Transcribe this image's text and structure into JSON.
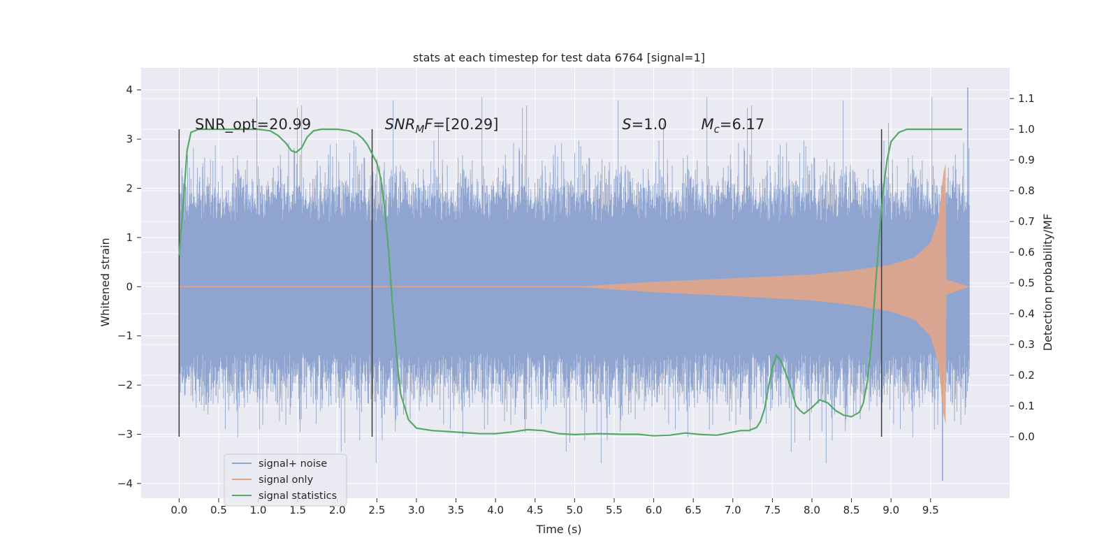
{
  "chart_data": {
    "type": "line",
    "title": "stats at each timestep for test data 6764 [signal=1]",
    "xlabel": "Time (s)",
    "ylabel": "Whitened strain",
    "ylabel_right": "Detection probability/MF",
    "xlim": [
      -0.48,
      10.5
    ],
    "ylim": [
      -4.3,
      4.45
    ],
    "ylim_right": [
      -0.2,
      1.2
    ],
    "x_ticks": [
      "0.0",
      "0.5",
      "1.0",
      "1.5",
      "2.0",
      "2.5",
      "3.0",
      "3.5",
      "4.0",
      "4.5",
      "5.0",
      "5.5",
      "6.0",
      "6.5",
      "7.0",
      "7.5",
      "8.0",
      "8.5",
      "9.0",
      "9.5"
    ],
    "y_ticks": [
      "4",
      "3",
      "2",
      "1",
      "0",
      "−1",
      "−2",
      "−3",
      "−4"
    ],
    "y_ticks_right": [
      "1.1",
      "1.0",
      "0.9",
      "0.8",
      "0.7",
      "0.6",
      "0.5",
      "0.4",
      "0.3",
      "0.2",
      "0.1",
      "0.0"
    ],
    "grid": true,
    "legend_position": "lower-left",
    "colors": {
      "background": "#eaeaf2",
      "grid": "#ffffff",
      "noise": "#8fa5cf",
      "signal": "#e0a58a",
      "stats": "#55a868",
      "vline": "#3a3a3a"
    },
    "annotations": [
      {
        "prefix": "SNR_opt=20.99",
        "sub": "",
        "suffix": "",
        "x": 0.2,
        "y": 3.2
      },
      {
        "prefix": "SNR",
        "sub": "M",
        "suffix": "F=[20.29]",
        "x": 2.6,
        "y": 3.2
      },
      {
        "prefix": "S",
        "sub": "",
        "suffix": "=1.0",
        "x": 5.6,
        "y": 3.2
      },
      {
        "prefix": "M",
        "sub": "c",
        "suffix": "=6.17",
        "x": 6.6,
        "y": 3.2
      }
    ],
    "vertical_lines": [
      0.0,
      2.44,
      8.88
    ],
    "series": [
      {
        "name": "signal+ noise",
        "axis": "left",
        "x_range": [
          0.0,
          9.99
        ],
        "description_values": {
          "typical_band": [
            -1.3,
            1.3
          ],
          "peak_max": 4.05,
          "peak_min": -3.95
        }
      },
      {
        "name": "signal only",
        "axis": "left",
        "x_range": [
          0.0,
          9.99
        ],
        "envelope": {
          "x": [
            0.0,
            5.0,
            6.0,
            7.0,
            8.0,
            8.5,
            9.0,
            9.3,
            9.5,
            9.6,
            9.66,
            9.69,
            9.7,
            9.99
          ],
          "amp": [
            0.0,
            0.0,
            0.1,
            0.17,
            0.25,
            0.33,
            0.45,
            0.6,
            0.9,
            1.4,
            2.3,
            2.5,
            0.15,
            0.0
          ]
        }
      },
      {
        "name": "signal statistics",
        "axis": "right",
        "x": [
          0.0,
          0.05,
          0.1,
          0.15,
          0.25,
          0.4,
          0.6,
          0.8,
          1.0,
          1.15,
          1.25,
          1.35,
          1.42,
          1.48,
          1.55,
          1.62,
          1.7,
          1.8,
          2.0,
          2.15,
          2.25,
          2.32,
          2.38,
          2.44,
          2.5,
          2.55,
          2.6,
          2.65,
          2.7,
          2.75,
          2.8,
          2.9,
          3.0,
          3.2,
          3.5,
          3.8,
          4.0,
          4.2,
          4.4,
          4.6,
          4.8,
          5.0,
          5.3,
          5.6,
          5.8,
          6.0,
          6.2,
          6.4,
          6.6,
          6.8,
          7.0,
          7.1,
          7.2,
          7.3,
          7.35,
          7.4,
          7.45,
          7.5,
          7.55,
          7.6,
          7.65,
          7.7,
          7.75,
          7.8,
          7.85,
          7.9,
          8.0,
          8.1,
          8.2,
          8.3,
          8.4,
          8.5,
          8.6,
          8.65,
          8.7,
          8.75,
          8.8,
          8.85,
          8.9,
          8.95,
          9.0,
          9.1,
          9.2,
          9.35,
          9.5,
          9.7,
          9.9
        ],
        "values": [
          0.59,
          0.75,
          0.93,
          0.99,
          1.0,
          1.0,
          1.0,
          1.0,
          1.0,
          0.995,
          0.98,
          0.955,
          0.93,
          0.925,
          0.94,
          0.975,
          0.995,
          1.0,
          1.0,
          0.995,
          0.985,
          0.97,
          0.95,
          0.92,
          0.89,
          0.84,
          0.74,
          0.6,
          0.42,
          0.26,
          0.14,
          0.055,
          0.028,
          0.02,
          0.015,
          0.01,
          0.01,
          0.015,
          0.023,
          0.02,
          0.01,
          0.007,
          0.01,
          0.008,
          0.008,
          0.003,
          0.005,
          0.012,
          0.007,
          0.005,
          0.015,
          0.02,
          0.02,
          0.03,
          0.05,
          0.09,
          0.16,
          0.225,
          0.265,
          0.25,
          0.22,
          0.185,
          0.145,
          0.1,
          0.085,
          0.075,
          0.095,
          0.12,
          0.11,
          0.085,
          0.07,
          0.065,
          0.08,
          0.11,
          0.18,
          0.3,
          0.48,
          0.65,
          0.8,
          0.9,
          0.96,
          0.99,
          1.0,
          1.0,
          1.0,
          1.0,
          1.0
        ]
      }
    ]
  }
}
